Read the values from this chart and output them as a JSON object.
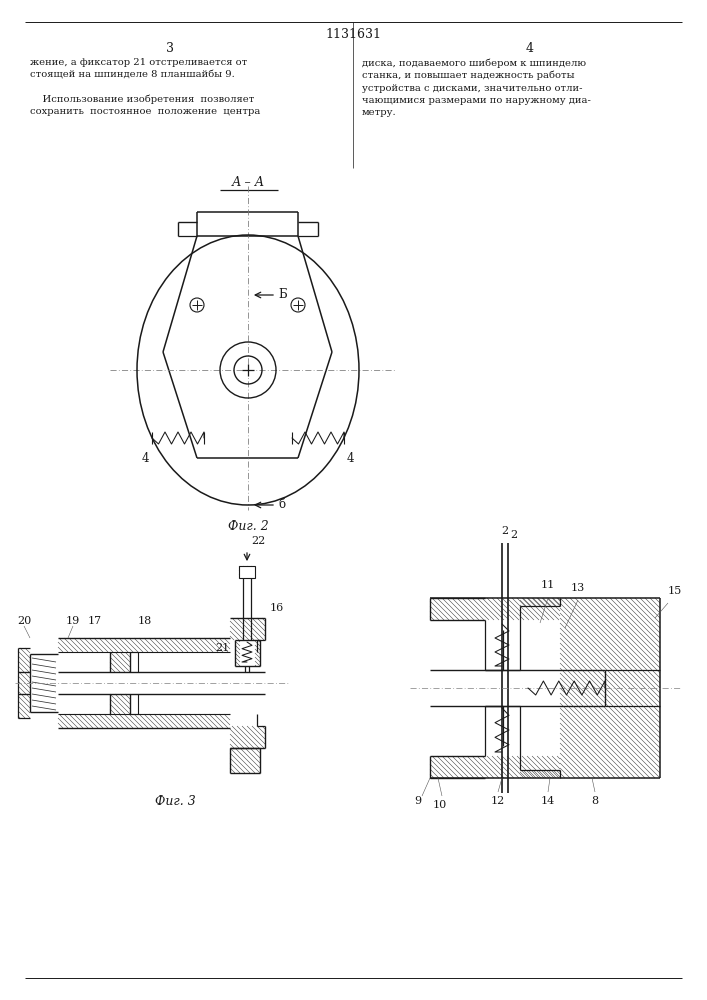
{
  "page_width": 7.07,
  "page_height": 10.0,
  "line_color": "#1a1a1a",
  "title_text": "1131631",
  "page_num_left": "3",
  "page_num_right": "4",
  "text_left_col": "жение, а фиксатор 21 отстреливается от\nстоящей на шпинделе 8 планшайбы 9.\n\n    Использование изобретения  позволяет\nсохранить  постоянное  положение  центра",
  "text_right_col": "диска, подаваемого шибером к шпинделю\nстанка, и повышает надежность работы\nустройства с дисками, значительно отли-\nчающимися размерами по наружному диа-\nметру.",
  "fig2_label": "А – А",
  "fig2_caption": "Фиг. 2",
  "fig3_caption": "Фиг. 3"
}
